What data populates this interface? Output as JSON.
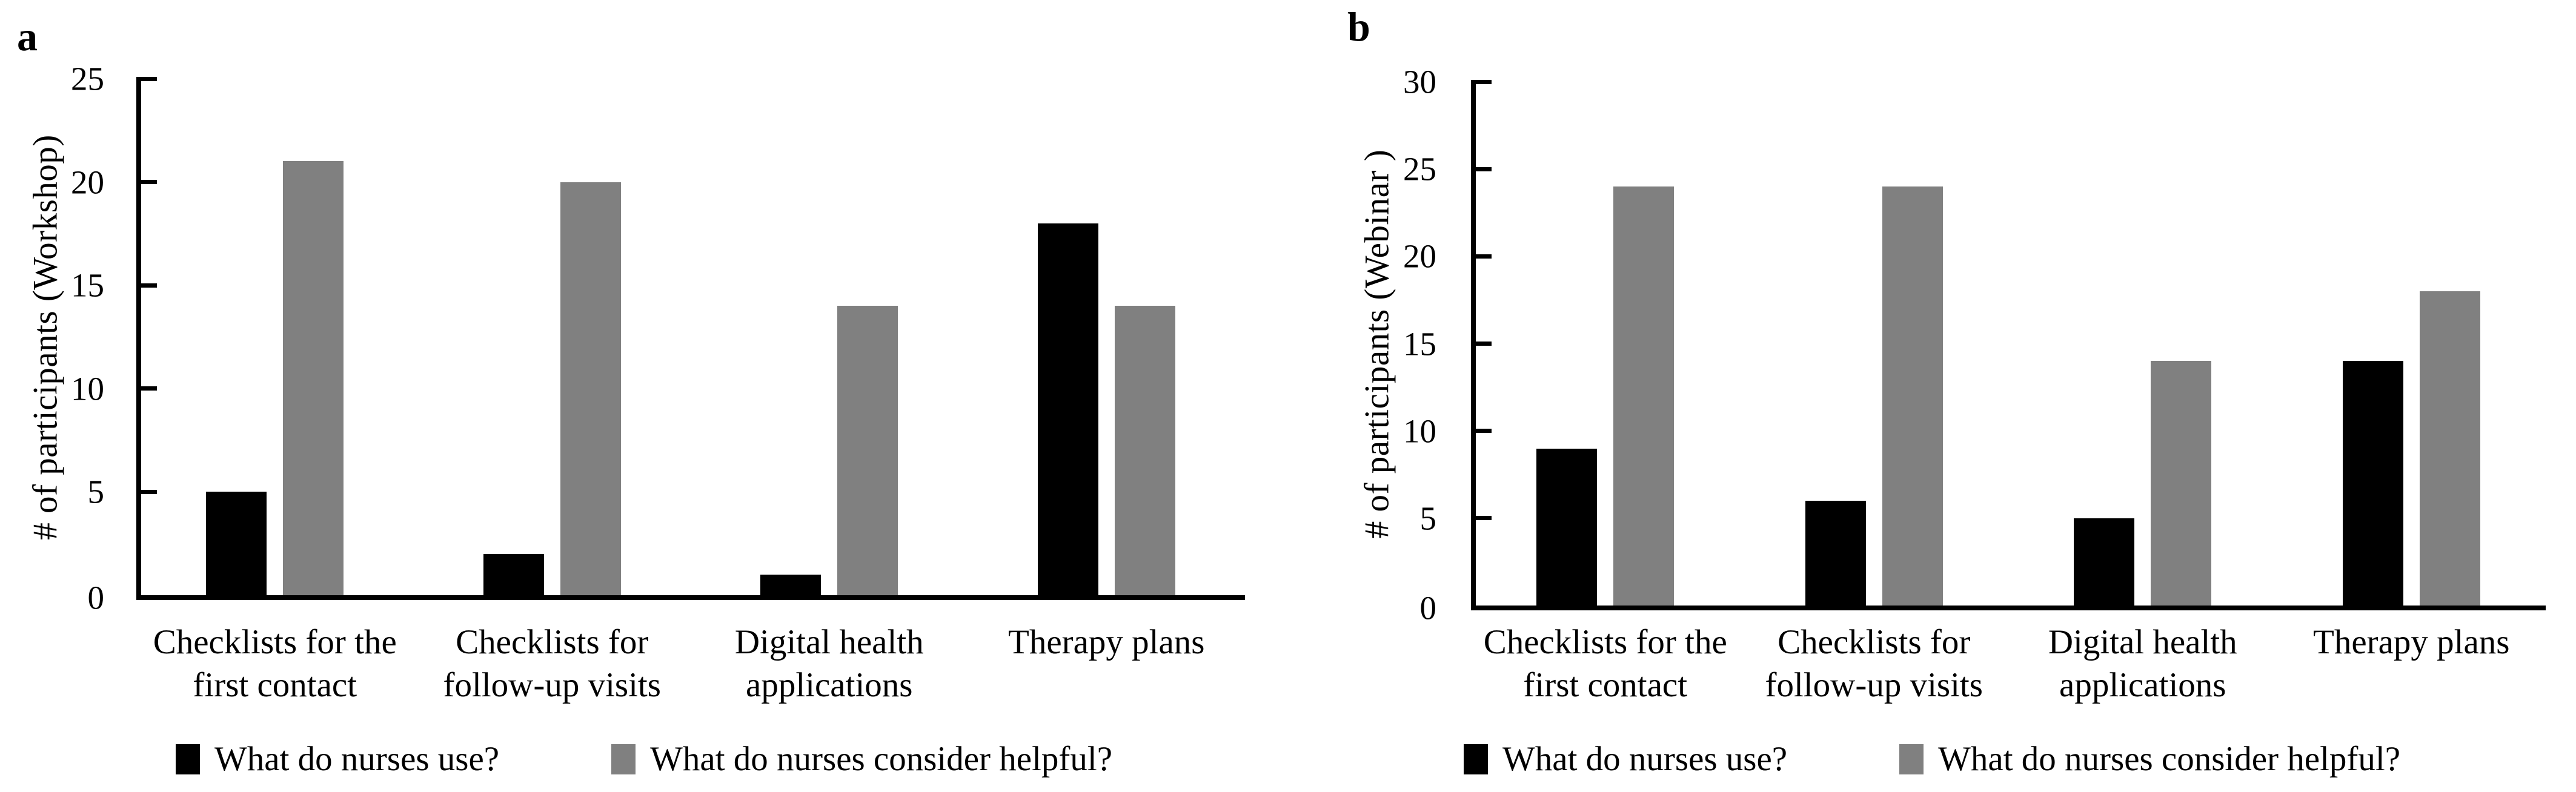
{
  "figure": {
    "background": "#ffffff",
    "text_color": "#000000"
  },
  "chart_data": [
    {
      "type": "bar",
      "panel_label": "a",
      "title": "",
      "xlabel": "",
      "ylabel": "# of participants (Workshop)",
      "ylim": [
        0,
        25
      ],
      "yticks": [
        0,
        5,
        10,
        15,
        20,
        25
      ],
      "grid": false,
      "legend_position": "bottom",
      "categories": [
        "Checklists for the first contact",
        "Checklists for follow-up visits",
        "Digital health applications",
        "Therapy plans"
      ],
      "categories_lines": [
        [
          "Checklists for the",
          "first contact"
        ],
        [
          "Checklists for",
          "follow-up visits"
        ],
        [
          "Digital health",
          "applications"
        ],
        [
          "Therapy plans"
        ]
      ],
      "series": [
        {
          "name": "What do nurses use?",
          "color": "#000000",
          "values": [
            5,
            2,
            1,
            18
          ]
        },
        {
          "name": "What do nurses consider helpful?",
          "color": "#808080",
          "values": [
            21,
            20,
            14,
            14
          ]
        }
      ]
    },
    {
      "type": "bar",
      "panel_label": "b",
      "title": "",
      "xlabel": "",
      "ylabel": "# of participants (Webinar )",
      "ylim": [
        0,
        30
      ],
      "yticks": [
        0,
        5,
        10,
        15,
        20,
        25,
        30
      ],
      "grid": false,
      "legend_position": "bottom",
      "categories": [
        "Checklists for the first contact",
        "Checklists for follow-up visits",
        "Digital health applications",
        "Therapy plans"
      ],
      "categories_lines": [
        [
          "Checklists for the",
          "first contact"
        ],
        [
          "Checklists for",
          "follow-up visits"
        ],
        [
          "Digital health",
          "applications"
        ],
        [
          "Therapy plans"
        ]
      ],
      "series": [
        {
          "name": "What do nurses use?",
          "color": "#000000",
          "values": [
            9,
            6,
            5,
            14
          ]
        },
        {
          "name": "What do nurses consider helpful?",
          "color": "#808080",
          "values": [
            24,
            24,
            14,
            18
          ]
        }
      ]
    }
  ]
}
